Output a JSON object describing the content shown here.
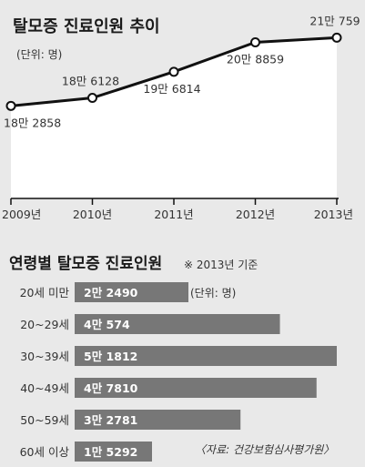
{
  "line_section": {
    "title": "탈모증 진료인원 추이",
    "unit": "(단위: 명)"
  },
  "bar_section": {
    "title": "연령별 탈모증 진료인원",
    "note": "※ 2013년 기준",
    "unit": "(단위: 명)",
    "source": "〈자료: 건강보험심사평가원〉"
  },
  "colors": {
    "background": "#e9e9e9",
    "area_fill": "#ffffff",
    "bar": "#777777",
    "line": "#111111",
    "axis": "#111111"
  },
  "chart_data": [
    {
      "type": "line",
      "title": "탈모증 진료인원 추이",
      "unit": "(단위: 명)",
      "x": [
        "2009년",
        "2010년",
        "2011년",
        "2012년",
        "2013년"
      ],
      "values": [
        182858,
        186128,
        196814,
        208859,
        210759
      ],
      "labels": [
        "18만 2858",
        "18만 6128",
        "19만 6814",
        "20만 8859",
        "21만 759"
      ],
      "ylim": [
        180000,
        215000
      ],
      "grid": false
    },
    {
      "type": "bar",
      "title": "연령별 탈모증 진료인원",
      "note": "※ 2013년 기준",
      "unit": "(단위: 명)",
      "categories": [
        "20세 미만",
        "20~29세",
        "30~39세",
        "40~49세",
        "50~59세",
        "60세 이상"
      ],
      "values": [
        22490,
        40574,
        51812,
        47810,
        32781,
        15292
      ],
      "labels": [
        "2만 2490",
        "4만 574",
        "5만 1812",
        "4만 7810",
        "3만 2781",
        "1만 5292"
      ]
    }
  ]
}
